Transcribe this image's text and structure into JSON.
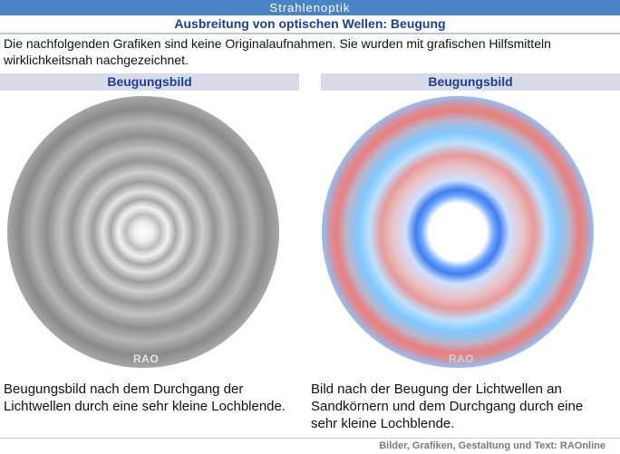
{
  "header": {
    "section": "Strahlenoptik",
    "title": "Ausbreitung von optischen Wellen: Beugung"
  },
  "intro": "Die nachfolgenden Grafiken sind keine Originalaufnahmen. Sie wurden mit grafischen Hilfsmitteln wirklichkeitsnah nachgezeichnet.",
  "panels": [
    {
      "heading": "Beugungsbild",
      "watermark": "RAO",
      "caption": "Beugungsbild nach dem Durchgang der Lichtwellen durch eine sehr kleine Lochblende."
    },
    {
      "heading": "Beugungsbild",
      "watermark": "RAO",
      "caption": "Bild nach der Beugung der Lichtwellen an Sandkörnern und dem Durchgang durch eine sehr kleine Lochblende."
    }
  ],
  "footer": "Bilder, Grafiken, Gestaltung und Text: RAOnline",
  "colors": {
    "top_bar": "#4a84c4",
    "title_text": "#1f3c99",
    "panel_header_bg": "#d7dce8"
  }
}
